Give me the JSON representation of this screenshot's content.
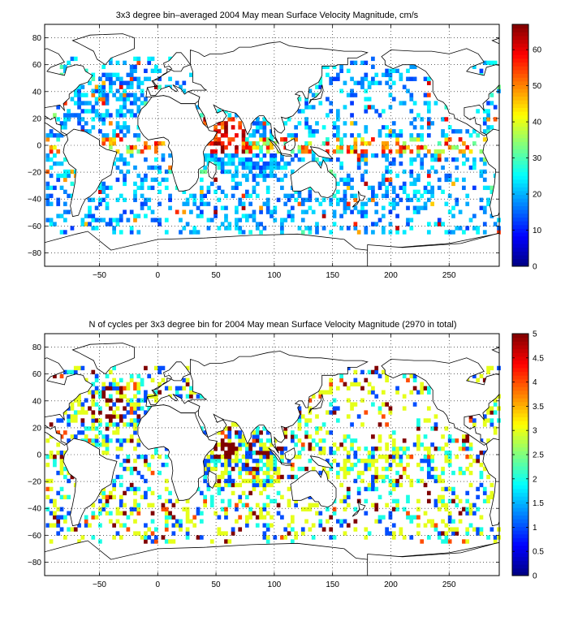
{
  "chart_data": [
    {
      "type": "heatmap",
      "title": "3x3 degree bin–averaged 2004 May mean Surface Velocity Magnitude, cm/s",
      "xlim": [
        -97,
        293
      ],
      "ylim": [
        -90,
        90
      ],
      "xticks": [
        -50,
        0,
        50,
        100,
        150,
        200,
        250
      ],
      "yticks": [
        -80,
        -60,
        -40,
        -20,
        0,
        20,
        40,
        60,
        80
      ],
      "grid": true,
      "colorbar": {
        "min": 0,
        "max": 67,
        "ticks": [
          "0",
          "10",
          "20",
          "30",
          "40",
          "50",
          "60"
        ]
      },
      "binsize_deg": 3,
      "seed": 7,
      "value_profile": "speed"
    },
    {
      "type": "heatmap",
      "title": "N of cycles per 3x3 degree bin for 2004 May mean Surface Velocity Magnitude (2970 in total)",
      "xlim": [
        -97,
        293
      ],
      "ylim": [
        -90,
        90
      ],
      "xticks": [
        -50,
        0,
        50,
        100,
        150,
        200,
        250
      ],
      "yticks": [
        -80,
        -60,
        -40,
        -20,
        0,
        20,
        40,
        60,
        80
      ],
      "grid": true,
      "colorbar": {
        "min": 0,
        "max": 5,
        "ticks": [
          "0",
          "0.5",
          "1",
          "1.5",
          "2",
          "2.5",
          "3",
          "3.5",
          "4",
          "4.5",
          "5"
        ]
      },
      "binsize_deg": 3,
      "seed": 7,
      "value_profile": "count",
      "total_cycles": 2970
    }
  ]
}
